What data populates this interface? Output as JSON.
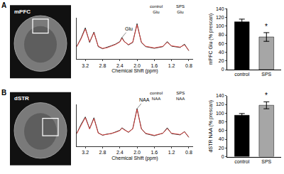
{
  "panels": [
    {
      "label": "A",
      "region": "mPFC"
    },
    {
      "label": "B",
      "region": "dSTR"
    }
  ],
  "chart_data": [
    {
      "type": "line",
      "x": [
        3.4,
        3.3,
        3.2,
        3.1,
        3.0,
        2.9,
        2.8,
        2.7,
        2.6,
        2.5,
        2.4,
        2.35,
        2.3,
        2.2,
        2.1,
        2.0,
        1.9,
        1.8,
        1.6,
        1.4,
        1.3,
        1.2,
        1.0,
        0.9,
        0.8
      ],
      "series": [
        {
          "color": "#000000",
          "values": [
            3,
            5,
            7.5,
            4,
            6.5,
            3,
            2.5,
            2.8,
            3.2,
            3.6,
            4.2,
            5.2,
            4.3,
            3.4,
            4,
            8.5,
            4,
            3,
            2.6,
            3,
            4.2,
            3.1,
            2.8,
            3.6,
            2
          ]
        },
        {
          "color": "#e8322e",
          "values": [
            3,
            4.8,
            7.2,
            4.2,
            6.3,
            3.1,
            2.6,
            2.7,
            3.1,
            3.5,
            4.1,
            5,
            4.2,
            3.5,
            4.1,
            8.2,
            4.1,
            3.1,
            2.7,
            3.1,
            4,
            3.2,
            2.9,
            3.4,
            2.1
          ]
        }
      ],
      "xlabel": "Chemical Shift (ppm)",
      "xlim": [
        3.4,
        0.7
      ],
      "xticks": [
        3.2,
        2.8,
        2.4,
        {
          "value": 2,
          "label": "2.0"
        },
        1.6,
        1.2,
        0.8
      ],
      "ylim": [
        0,
        10
      ],
      "tick_labels": "x",
      "annotations": [
        {
          "text": "Glu",
          "x": 2.35,
          "y": 5.2
        }
      ],
      "inset_labels": [
        [
          "control",
          "Glu"
        ],
        [
          "SPS",
          "Glu"
        ]
      ]
    },
    {
      "type": "bar",
      "categories": [
        "control",
        "SPS"
      ],
      "values": [
        110,
        75
      ],
      "errors": [
        6,
        10
      ],
      "colors": [
        "#000000",
        "#a6a6a6"
      ],
      "ylabel": "mPFC Glu (% prescan)",
      "ylim": [
        0,
        140
      ],
      "yticks": [
        0,
        20,
        40,
        60,
        80,
        100,
        120,
        140
      ],
      "annotations": [
        {
          "text": "*",
          "x": "SPS"
        }
      ]
    },
    {
      "type": "line",
      "x": [
        3.4,
        3.3,
        3.2,
        3.1,
        3.0,
        2.9,
        2.8,
        2.7,
        2.6,
        2.5,
        2.4,
        2.35,
        2.3,
        2.2,
        2.1,
        2.0,
        1.9,
        1.8,
        1.6,
        1.4,
        1.3,
        1.2,
        1.0,
        0.9,
        0.8
      ],
      "series": [
        {
          "color": "#000000",
          "values": [
            3,
            5.2,
            7,
            4.2,
            6.8,
            3.2,
            2.6,
            2.9,
            3,
            3.4,
            3.8,
            4.4,
            4,
            3.3,
            4.2,
            9,
            4.2,
            3,
            2.5,
            3.1,
            4.4,
            3,
            2.7,
            3.5,
            2.1
          ]
        },
        {
          "color": "#e8322e",
          "values": [
            3,
            5,
            6.8,
            4.1,
            6.6,
            3.1,
            2.7,
            2.8,
            3,
            3.3,
            3.7,
            4.3,
            3.9,
            3.4,
            4.1,
            8.8,
            4.1,
            3.1,
            2.6,
            3.1,
            4.2,
            3.1,
            2.8,
            3.4,
            2.2
          ]
        }
      ],
      "xlabel": "Chemical Shift (ppm)",
      "xlim": [
        3.4,
        0.7
      ],
      "xticks": [
        3.2,
        2.8,
        2.4,
        {
          "value": 2,
          "label": "2.0"
        },
        1.6,
        1.2,
        0.8
      ],
      "ylim": [
        0,
        10
      ],
      "tick_labels": "x",
      "annotations": [
        {
          "text": "NAA",
          "x": 2.0,
          "y": 9
        }
      ],
      "inset_labels": [
        [
          "control",
          "NAA"
        ],
        [
          "SPS",
          "NAA"
        ]
      ]
    },
    {
      "type": "bar",
      "categories": [
        "control",
        "SPS"
      ],
      "values": [
        95,
        118
      ],
      "errors": [
        4,
        8
      ],
      "colors": [
        "#000000",
        "#a6a6a6"
      ],
      "ylabel": "dSTR NAA (% prescan)",
      "ylim": [
        0,
        140
      ],
      "yticks": [
        0,
        20,
        40,
        60,
        80,
        100,
        120,
        140
      ],
      "annotations": [
        {
          "text": "*",
          "x": "SPS"
        }
      ]
    }
  ]
}
